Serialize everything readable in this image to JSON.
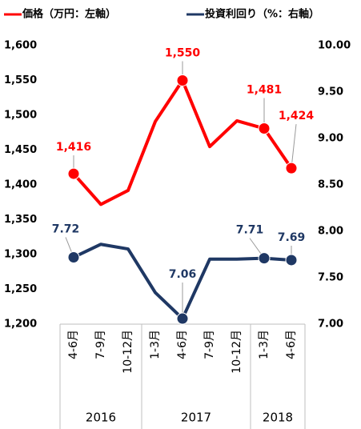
{
  "chart_data": {
    "type": "line",
    "categories": [
      "4-6月",
      "7-9月",
      "10-12月",
      "1-3月",
      "4-6月",
      "7-9月",
      "10-12月",
      "1-3月",
      "4-6月"
    ],
    "years": [
      "2016",
      null,
      null,
      "2017",
      null,
      null,
      null,
      "2018",
      null
    ],
    "series": [
      {
        "name": "価格（万円：左軸）",
        "color": "#ff0000",
        "axis": "y",
        "values": [
          1416,
          1372,
          1392,
          1491,
          1550,
          1455,
          1492,
          1481,
          1424
        ],
        "value_labels": [
          "1,416",
          null,
          null,
          null,
          "1,550",
          null,
          null,
          "1,481",
          "1,424"
        ]
      },
      {
        "name": "投資利回り（%：右軸）",
        "color": "#1f3864",
        "axis": "y2",
        "values": [
          7.72,
          7.86,
          7.81,
          7.34,
          7.06,
          7.7,
          7.7,
          7.71,
          7.69
        ],
        "value_labels": [
          "7.72",
          null,
          null,
          null,
          "7.06",
          null,
          null,
          "7.71",
          "7.69"
        ]
      }
    ],
    "ylim": [
      1200,
      1600
    ],
    "yticks": [
      {
        "value": 1200,
        "label": "1,200"
      },
      {
        "value": 1250,
        "label": "1,250"
      },
      {
        "value": 1300,
        "label": "1,300"
      },
      {
        "value": 1350,
        "label": "1,350"
      },
      {
        "value": 1400,
        "label": "1,400"
      },
      {
        "value": 1450,
        "label": "1,450"
      },
      {
        "value": 1500,
        "label": "1,500"
      },
      {
        "value": 1550,
        "label": "1,550"
      },
      {
        "value": 1600,
        "label": "1,600"
      }
    ],
    "y2lim": [
      7,
      10
    ],
    "y2ticks": [
      {
        "value": 7,
        "label": "7.00"
      },
      {
        "value": 7.5,
        "label": "7.50"
      },
      {
        "value": 8,
        "label": "8.00"
      },
      {
        "value": 8.5,
        "label": "8.50"
      },
      {
        "value": 9,
        "label": "9.00"
      },
      {
        "value": 9.5,
        "label": "9.50"
      },
      {
        "value": 10,
        "label": "10.00"
      }
    ],
    "grid": false
  }
}
